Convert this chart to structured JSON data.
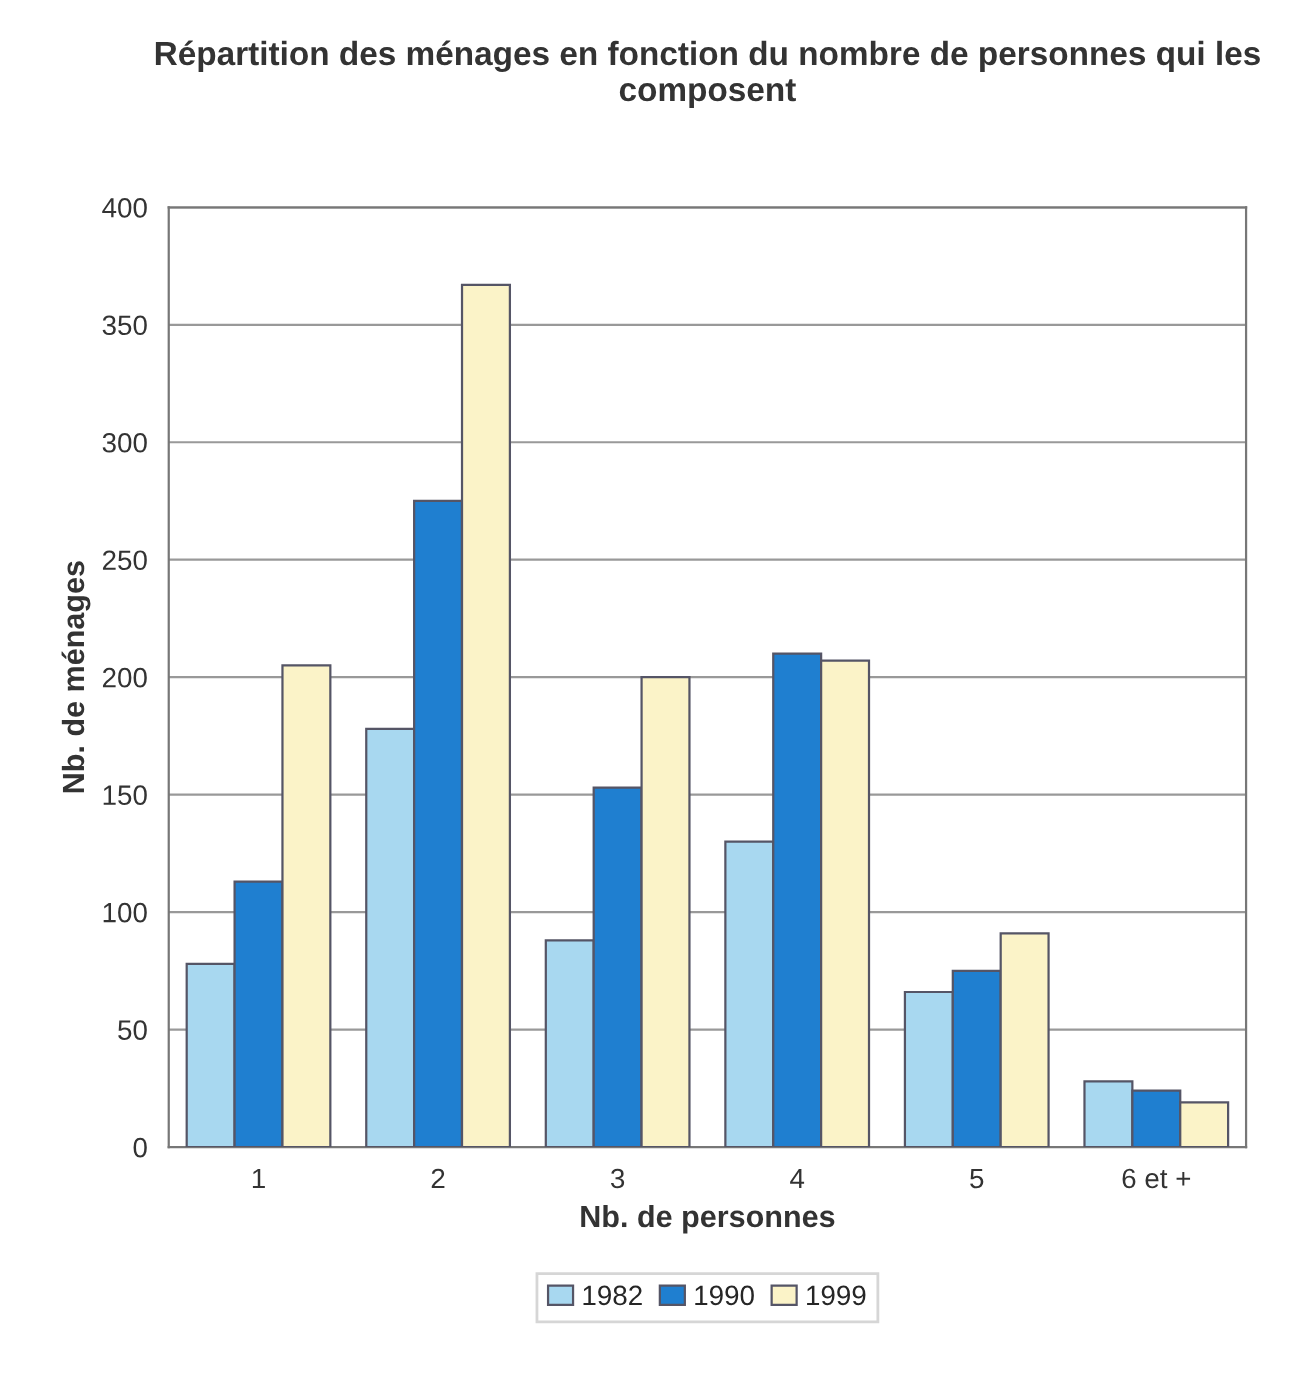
{
  "chart_data": {
    "type": "bar",
    "title": "Répartition des ménages en fonction du nombre de personnes qui les composent",
    "xlabel": "Nb. de personnes",
    "ylabel": "Nb. de ménages",
    "categories": [
      "1",
      "2",
      "3",
      "4",
      "5",
      "6 et +"
    ],
    "series": [
      {
        "name": "1982",
        "color": "#a8d8f0",
        "values": [
          78,
          178,
          88,
          130,
          66,
          28
        ]
      },
      {
        "name": "1990",
        "color": "#1f7fd0",
        "values": [
          113,
          275,
          153,
          210,
          75,
          24
        ]
      },
      {
        "name": "1999",
        "color": "#fbf3c8",
        "values": [
          205,
          367,
          200,
          207,
          91,
          19
        ]
      }
    ],
    "ylim": [
      0,
      400
    ],
    "yticks": [
      0,
      50,
      100,
      150,
      200,
      250,
      300,
      350,
      400
    ],
    "grid": "y",
    "legend": "bottom"
  }
}
